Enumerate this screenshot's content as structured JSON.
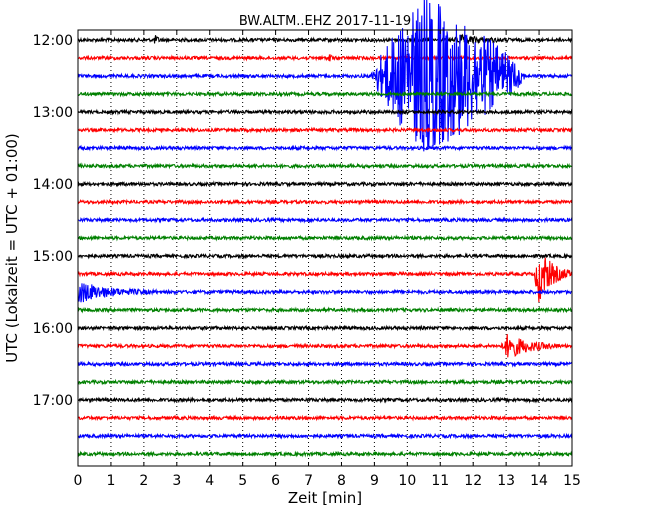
{
  "chart_data": {
    "type": "line",
    "title": "BW.ALTM..EHZ 2017-11-19",
    "xlabel": "Zeit  [min]",
    "ylabel": "UTC (Lokalzeit = UTC + 01:00)",
    "xlim": [
      0,
      15
    ],
    "x_ticks": [
      0,
      1,
      2,
      3,
      4,
      5,
      6,
      7,
      8,
      9,
      10,
      11,
      12,
      13,
      14,
      15
    ],
    "y_ticks": [
      "12:00",
      "13:00",
      "14:00",
      "15:00",
      "16:00",
      "17:00"
    ],
    "grid": "vertical dotted",
    "row_minutes": 15,
    "start_time": "12:00",
    "row_count": 24,
    "colors": [
      "#000000",
      "#ff0000",
      "#0000ff",
      "#008000"
    ],
    "events": [
      {
        "row": 0,
        "start": 2.3,
        "end": 2.6,
        "amp": 4
      },
      {
        "row": 0,
        "start": 11.4,
        "end": 13.2,
        "amp": 4
      },
      {
        "row": 1,
        "start": 7.6,
        "end": 7.75,
        "amp": 7
      },
      {
        "row": 2,
        "start": 8.9,
        "end": 13.6,
        "amp": 80
      },
      {
        "row": 13,
        "start": 13.85,
        "end": 15.0,
        "amp": 28
      },
      {
        "row": 14,
        "start": 0.0,
        "end": 2.5,
        "amp": 11
      },
      {
        "row": 17,
        "start": 12.85,
        "end": 14.6,
        "amp": 12
      }
    ]
  }
}
